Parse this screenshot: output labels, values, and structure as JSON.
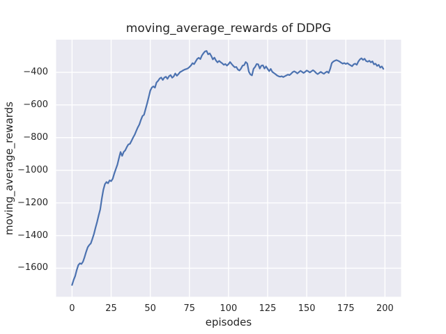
{
  "chart_data": {
    "type": "line",
    "title": "moving_average_rewards of DDPG",
    "xlabel": "episodes",
    "ylabel": "moving_average_rewards",
    "grid": true,
    "legend": "none",
    "xlim": [
      -10.2,
      210.3
    ],
    "ylim": [
      -1775,
      -200
    ],
    "xticks": {
      "values": [
        0,
        25,
        50,
        75,
        100,
        125,
        150,
        175,
        200
      ],
      "labels": [
        "0",
        "25",
        "50",
        "75",
        "100",
        "125",
        "150",
        "175",
        "200"
      ]
    },
    "yticks": {
      "values": [
        -400,
        -600,
        -800,
        -1000,
        -1200,
        -1400,
        -1600
      ],
      "labels": [
        "−400",
        "−600",
        "−800",
        "−1000",
        "−1200",
        "−1400",
        "−1600"
      ]
    },
    "x_start": 0,
    "x_step": 1,
    "series": [
      {
        "name": "moving_average_rewards",
        "color": "#4c72b0",
        "values": [
          -1703,
          -1672,
          -1648,
          -1611,
          -1581,
          -1570,
          -1574,
          -1560,
          -1532,
          -1500,
          -1472,
          -1458,
          -1448,
          -1420,
          -1390,
          -1352,
          -1317,
          -1277,
          -1240,
          -1175,
          -1120,
          -1085,
          -1072,
          -1080,
          -1062,
          -1067,
          -1052,
          -1020,
          -992,
          -965,
          -925,
          -888,
          -912,
          -888,
          -878,
          -858,
          -842,
          -838,
          -820,
          -800,
          -783,
          -760,
          -738,
          -720,
          -692,
          -668,
          -660,
          -625,
          -590,
          -552,
          -512,
          -493,
          -486,
          -494,
          -462,
          -452,
          -438,
          -432,
          -447,
          -432,
          -427,
          -440,
          -424,
          -417,
          -433,
          -425,
          -407,
          -421,
          -411,
          -399,
          -394,
          -388,
          -383,
          -380,
          -376,
          -368,
          -358,
          -344,
          -350,
          -334,
          -318,
          -311,
          -319,
          -297,
          -283,
          -272,
          -269,
          -290,
          -284,
          -300,
          -321,
          -310,
          -328,
          -339,
          -330,
          -338,
          -345,
          -354,
          -349,
          -359,
          -350,
          -337,
          -349,
          -360,
          -369,
          -367,
          -383,
          -389,
          -377,
          -359,
          -356,
          -337,
          -346,
          -396,
          -413,
          -419,
          -379,
          -367,
          -349,
          -351,
          -377,
          -359,
          -357,
          -377,
          -364,
          -379,
          -393,
          -379,
          -397,
          -404,
          -411,
          -419,
          -424,
          -427,
          -424,
          -429,
          -424,
          -419,
          -414,
          -417,
          -409,
          -399,
          -394,
          -399,
          -407,
          -399,
          -391,
          -397,
          -404,
          -397,
          -389,
          -394,
          -401,
          -394,
          -387,
          -394,
          -404,
          -411,
          -404,
          -397,
          -404,
          -409,
          -401,
          -395,
          -404,
          -379,
          -344,
          -334,
          -329,
          -325,
          -329,
          -334,
          -341,
          -347,
          -343,
          -349,
          -344,
          -351,
          -357,
          -363,
          -351,
          -347,
          -354,
          -334,
          -321,
          -314,
          -324,
          -317,
          -331,
          -335,
          -329,
          -339,
          -333,
          -351,
          -347,
          -361,
          -354,
          -371,
          -364,
          -379
        ]
      }
    ],
    "style": {
      "figure_bg": "#ffffff",
      "axes_bg": "#eaeaf2",
      "grid_color": "#ffffff",
      "text_color": "#262626",
      "line_width": 2.2
    }
  }
}
